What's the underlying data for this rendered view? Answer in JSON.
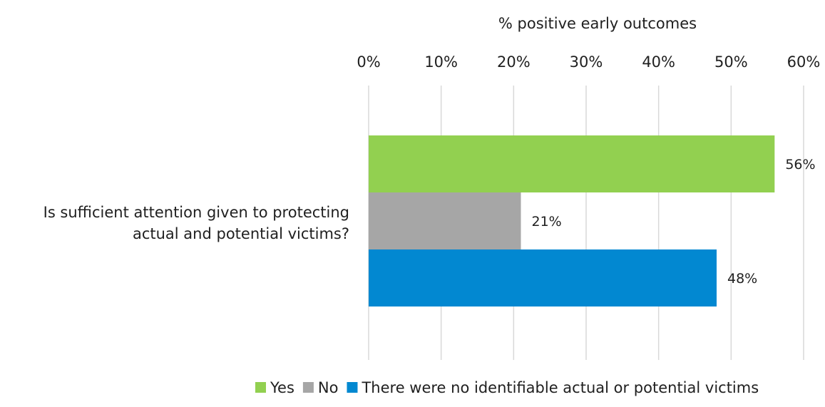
{
  "chart_data": {
    "type": "bar",
    "orientation": "horizontal",
    "axis_title": "% positive early outcomes",
    "categories": [
      "Is sufficient attention given to protecting actual and potential victims?"
    ],
    "category_label_lines": [
      "Is sufficient attention given to protecting",
      "actual and potential victims?"
    ],
    "xlim": [
      0,
      60
    ],
    "x_ticks": [
      "0%",
      "10%",
      "20%",
      "30%",
      "40%",
      "50%",
      "60%"
    ],
    "x_axis_position": "top",
    "grid": true,
    "legend_position": "bottom",
    "series": [
      {
        "name": "Yes",
        "values": [
          56
        ],
        "label": "56%",
        "color": "#92d050"
      },
      {
        "name": "No",
        "values": [
          21
        ],
        "label": "21%",
        "color": "#a6a6a6"
      },
      {
        "name": "There were no identifiable actual or potential victims",
        "values": [
          48
        ],
        "label": "48%",
        "color": "#0288d1"
      }
    ]
  }
}
